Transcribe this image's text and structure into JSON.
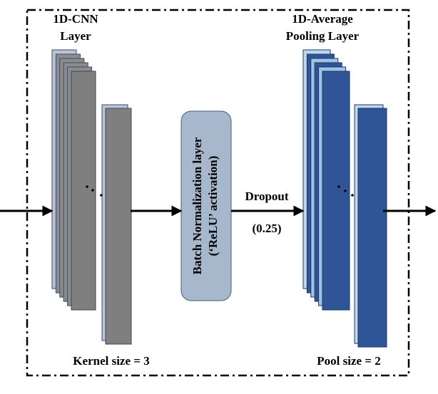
{
  "cnn_label": [
    "1D-CNN",
    "Layer"
  ],
  "pool_label": [
    "1D-Average",
    "Pooling Layer"
  ],
  "batch_norm": [
    "Batch Normalization  layer",
    "(‘ReLU’ activation)"
  ],
  "dropout": [
    "Dropout",
    "(0.25)"
  ],
  "kernel_size": "Kernel  size = 3",
  "pool_size": "Pool size = 2"
}
